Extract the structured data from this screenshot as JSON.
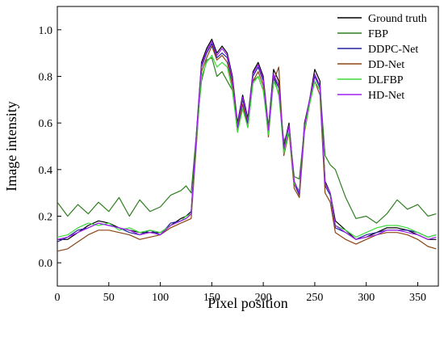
{
  "chart_data": {
    "type": "line",
    "xlabel": "Pixel position",
    "ylabel": "Image intensity",
    "xlim": [
      0,
      370
    ],
    "ylim": [
      -0.1,
      1.1
    ],
    "xticks": [
      0,
      50,
      100,
      150,
      200,
      250,
      300,
      350
    ],
    "yticks": [
      0.0,
      0.2,
      0.4,
      0.6,
      0.8,
      1.0
    ],
    "xtick_labels": [
      "0",
      "50",
      "100",
      "150",
      "200",
      "250",
      "300",
      "350"
    ],
    "ytick_labels": [
      "0.0",
      "0.2",
      "0.4",
      "0.6",
      "0.8",
      "1.0"
    ],
    "grid": false,
    "legend_position": "top-right",
    "x": [
      0,
      10,
      20,
      30,
      40,
      50,
      60,
      70,
      80,
      90,
      100,
      110,
      120,
      125,
      130,
      135,
      140,
      145,
      150,
      155,
      160,
      165,
      170,
      175,
      180,
      185,
      190,
      195,
      200,
      205,
      210,
      215,
      220,
      225,
      230,
      235,
      240,
      245,
      250,
      255,
      260,
      265,
      270,
      280,
      290,
      300,
      310,
      320,
      330,
      340,
      350,
      360,
      368
    ],
    "series": [
      {
        "name": "Ground truth",
        "color": "#000000",
        "values": [
          0.1,
          0.1,
          0.13,
          0.16,
          0.18,
          0.17,
          0.15,
          0.14,
          0.13,
          0.13,
          0.13,
          0.16,
          0.19,
          0.2,
          0.22,
          0.55,
          0.86,
          0.92,
          0.96,
          0.9,
          0.93,
          0.9,
          0.8,
          0.6,
          0.72,
          0.62,
          0.82,
          0.86,
          0.8,
          0.58,
          0.83,
          0.78,
          0.5,
          0.6,
          0.35,
          0.3,
          0.6,
          0.7,
          0.83,
          0.78,
          0.35,
          0.3,
          0.18,
          0.14,
          0.1,
          0.11,
          0.13,
          0.15,
          0.15,
          0.14,
          0.12,
          0.1,
          0.1
        ]
      },
      {
        "name": "FBP",
        "color": "#2d7f1f",
        "values": [
          0.26,
          0.2,
          0.25,
          0.21,
          0.26,
          0.22,
          0.28,
          0.2,
          0.27,
          0.22,
          0.24,
          0.29,
          0.31,
          0.33,
          0.3,
          0.55,
          0.78,
          0.87,
          0.88,
          0.8,
          0.82,
          0.78,
          0.74,
          0.58,
          0.66,
          0.6,
          0.78,
          0.8,
          0.74,
          0.58,
          0.8,
          0.72,
          0.52,
          0.58,
          0.37,
          0.36,
          0.58,
          0.7,
          0.8,
          0.76,
          0.46,
          0.42,
          0.4,
          0.28,
          0.19,
          0.2,
          0.17,
          0.21,
          0.27,
          0.23,
          0.25,
          0.2,
          0.21
        ]
      },
      {
        "name": "DDPC-Net",
        "color": "#2323a0",
        "values": [
          0.09,
          0.11,
          0.14,
          0.15,
          0.17,
          0.16,
          0.15,
          0.13,
          0.12,
          0.14,
          0.12,
          0.17,
          0.18,
          0.19,
          0.21,
          0.53,
          0.84,
          0.9,
          0.94,
          0.88,
          0.9,
          0.88,
          0.78,
          0.58,
          0.7,
          0.6,
          0.8,
          0.84,
          0.78,
          0.56,
          0.8,
          0.75,
          0.48,
          0.58,
          0.34,
          0.29,
          0.58,
          0.7,
          0.8,
          0.75,
          0.33,
          0.29,
          0.15,
          0.13,
          0.1,
          0.12,
          0.13,
          0.14,
          0.14,
          0.14,
          0.13,
          0.11,
          0.12
        ]
      },
      {
        "name": "DD-Net",
        "color": "#8b4513",
        "values": [
          0.05,
          0.06,
          0.09,
          0.12,
          0.14,
          0.14,
          0.13,
          0.12,
          0.1,
          0.11,
          0.12,
          0.15,
          0.17,
          0.18,
          0.19,
          0.5,
          0.82,
          0.88,
          0.93,
          0.87,
          0.89,
          0.86,
          0.76,
          0.56,
          0.68,
          0.58,
          0.78,
          0.82,
          0.76,
          0.54,
          0.78,
          0.84,
          0.46,
          0.56,
          0.32,
          0.28,
          0.56,
          0.68,
          0.78,
          0.72,
          0.3,
          0.26,
          0.13,
          0.1,
          0.08,
          0.1,
          0.12,
          0.13,
          0.13,
          0.12,
          0.1,
          0.07,
          0.06
        ]
      },
      {
        "name": "DLFBP",
        "color": "#3cdc3c",
        "values": [
          0.11,
          0.12,
          0.15,
          0.17,
          0.16,
          0.17,
          0.14,
          0.15,
          0.13,
          0.14,
          0.13,
          0.16,
          0.18,
          0.2,
          0.21,
          0.52,
          0.8,
          0.86,
          0.89,
          0.84,
          0.86,
          0.84,
          0.74,
          0.56,
          0.66,
          0.58,
          0.77,
          0.8,
          0.74,
          0.55,
          0.78,
          0.73,
          0.47,
          0.57,
          0.34,
          0.31,
          0.57,
          0.68,
          0.78,
          0.74,
          0.34,
          0.3,
          0.16,
          0.14,
          0.11,
          0.13,
          0.15,
          0.16,
          0.16,
          0.15,
          0.13,
          0.11,
          0.12
        ]
      },
      {
        "name": "HD-Net",
        "color": "#a020f0",
        "values": [
          0.1,
          0.11,
          0.13,
          0.15,
          0.17,
          0.16,
          0.15,
          0.14,
          0.12,
          0.13,
          0.12,
          0.16,
          0.18,
          0.19,
          0.21,
          0.54,
          0.85,
          0.91,
          0.95,
          0.89,
          0.92,
          0.89,
          0.79,
          0.59,
          0.71,
          0.61,
          0.81,
          0.85,
          0.79,
          0.57,
          0.81,
          0.76,
          0.49,
          0.59,
          0.35,
          0.3,
          0.59,
          0.7,
          0.81,
          0.76,
          0.34,
          0.3,
          0.16,
          0.13,
          0.1,
          0.11,
          0.12,
          0.14,
          0.14,
          0.13,
          0.12,
          0.1,
          0.11
        ]
      }
    ]
  }
}
